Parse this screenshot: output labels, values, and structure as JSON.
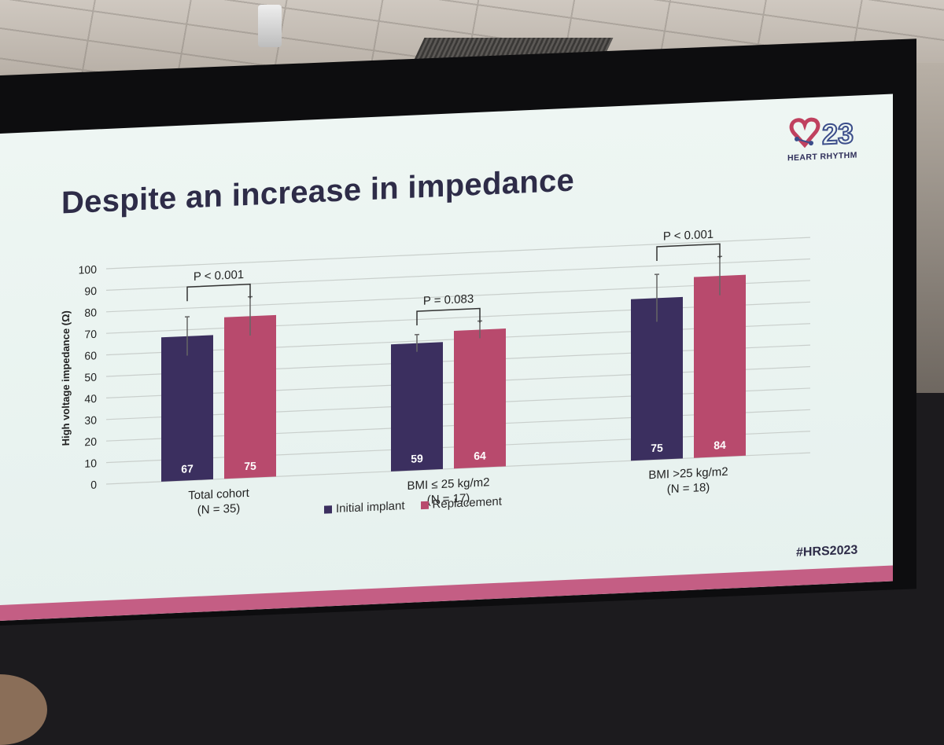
{
  "slide": {
    "title": "Despite an increase in impedance",
    "logo_number": "23",
    "logo_text": "HEART RHYTHM",
    "hashtag": "#HRS2023"
  },
  "colors": {
    "initial": "#3b2f5f",
    "replacement": "#b84a6d",
    "slide_bg": "#e8f2ef",
    "stripe": "#c45e84",
    "title": "#2e2c48"
  },
  "chart_data": {
    "type": "bar",
    "title": "",
    "xlabel": "",
    "ylabel": "High voltage impedance (Ω)",
    "ylim": [
      0,
      100
    ],
    "yticks": [
      0,
      10,
      20,
      30,
      40,
      50,
      60,
      70,
      80,
      90,
      100
    ],
    "grid": true,
    "categories": [
      {
        "label": "Total cohort",
        "n": "(N = 35)"
      },
      {
        "label": "BMI ≤ 25 kg/m2",
        "n": "(N = 17)"
      },
      {
        "label": "BMI >25 kg/m2",
        "n": "(N = 18)"
      }
    ],
    "series": [
      {
        "name": "Initial implant",
        "values": [
          67,
          59,
          75
        ],
        "data_labels": [
          "67",
          "59",
          "75"
        ],
        "errors": [
          9,
          4,
          11
        ]
      },
      {
        "name": "Replacement",
        "values": [
          75,
          64,
          84
        ],
        "data_labels": [
          "75",
          "64",
          "84"
        ],
        "errors": [
          9,
          4,
          9
        ]
      }
    ],
    "annotations": [
      {
        "group": 0,
        "text": "P < 0.001"
      },
      {
        "group": 1,
        "text": "P = 0.083"
      },
      {
        "group": 2,
        "text": "P < 0.001"
      }
    ],
    "legend_position": "bottom-center"
  }
}
